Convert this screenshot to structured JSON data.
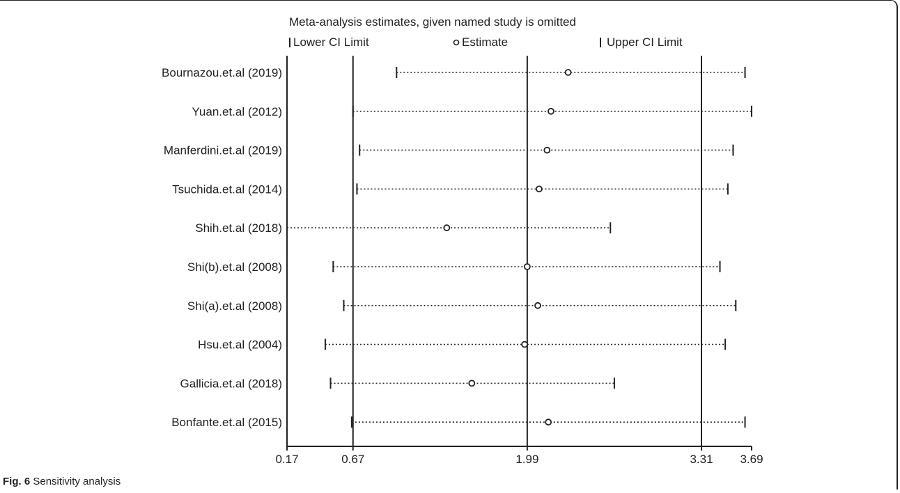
{
  "figure_caption": {
    "label": "Fig. 6",
    "text": "Sensitivity analysis"
  },
  "chart_data": {
    "type": "scatter",
    "title": "Meta-analysis estimates, given named study is omitted",
    "legend": {
      "placement": "top",
      "lower": "Lower CI Limit",
      "estimate": "Estimate",
      "upper": "Upper CI Limit"
    },
    "xlim": [
      0.17,
      3.69
    ],
    "x_ticks": [
      "0.17",
      "0.67",
      "1.99",
      "3.31",
      "3.69"
    ],
    "reference_lines": [
      0.67,
      1.99,
      3.31
    ],
    "studies": [
      {
        "name": "Bournazou.et.al (2019)",
        "lower": 1.0,
        "estimate": 2.3,
        "upper": 3.64
      },
      {
        "name": "Yuan.et.al (2012)",
        "lower": 0.67,
        "estimate": 2.17,
        "upper": 3.69
      },
      {
        "name": "Manferdini.et.al (2019)",
        "lower": 0.72,
        "estimate": 2.14,
        "upper": 3.55
      },
      {
        "name": "Tsuchida.et.al (2014)",
        "lower": 0.7,
        "estimate": 2.08,
        "upper": 3.51
      },
      {
        "name": "Shih.et.al (2018)",
        "lower": 0.17,
        "estimate": 1.38,
        "upper": 2.62
      },
      {
        "name": "Shi(b).et.al (2008)",
        "lower": 0.52,
        "estimate": 1.99,
        "upper": 3.45
      },
      {
        "name": "Shi(a).et.al (2008)",
        "lower": 0.6,
        "estimate": 2.07,
        "upper": 3.57
      },
      {
        "name": "Hsu.et.al (2004)",
        "lower": 0.46,
        "estimate": 1.97,
        "upper": 3.49
      },
      {
        "name": "Gallicia.et.al (2018)",
        "lower": 0.5,
        "estimate": 1.57,
        "upper": 2.65
      },
      {
        "name": "Bonfante.et.al (2015)",
        "lower": 0.66,
        "estimate": 2.15,
        "upper": 3.64
      }
    ]
  }
}
